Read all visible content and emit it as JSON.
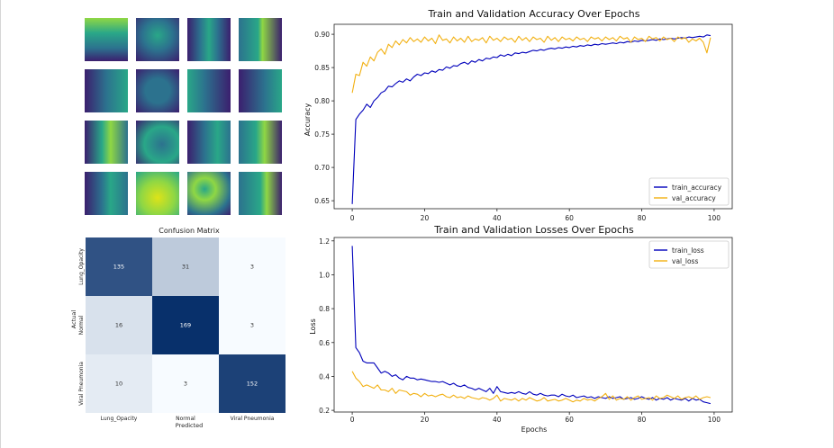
{
  "feature_maps": {
    "columns": 4,
    "rows": 4,
    "palette": {
      "dark": "#3b1f6e",
      "mid": "#2c728e",
      "teal": "#29a788",
      "light": "#8fd744",
      "bright": "#dde318"
    }
  },
  "chart_data": [
    {
      "type": "heatmap",
      "title": "Confusion Matrix",
      "xlabel": "Predicted",
      "ylabel": "Actual",
      "x_categories": [
        "Lung_Opacity",
        "Normal",
        "Viral Pneumonia"
      ],
      "y_categories": [
        "Lung_Opacity",
        "Normal",
        "Viral Pneumonia"
      ],
      "values": [
        [
          135,
          31,
          3
        ],
        [
          16,
          169,
          3
        ],
        [
          10,
          3,
          152
        ]
      ],
      "colormap": "Blues",
      "color_low": "#f7fbff",
      "color_high": "#08306b"
    },
    {
      "type": "line",
      "title": "Train and Validation Accuracy Over Epochs",
      "xlabel": "",
      "ylabel": "Accuracy",
      "x": [
        0,
        1,
        2,
        3,
        4,
        5,
        6,
        7,
        8,
        9,
        10,
        11,
        12,
        13,
        14,
        15,
        16,
        17,
        18,
        19,
        20,
        21,
        22,
        23,
        24,
        25,
        26,
        27,
        28,
        29,
        30,
        31,
        32,
        33,
        34,
        35,
        36,
        37,
        38,
        39,
        40,
        41,
        42,
        43,
        44,
        45,
        46,
        47,
        48,
        49,
        50,
        51,
        52,
        53,
        54,
        55,
        56,
        57,
        58,
        59,
        60,
        61,
        62,
        63,
        64,
        65,
        66,
        67,
        68,
        69,
        70,
        71,
        72,
        73,
        74,
        75,
        76,
        77,
        78,
        79,
        80,
        81,
        82,
        83,
        84,
        85,
        86,
        87,
        88,
        89,
        90,
        91,
        92,
        93,
        94,
        95,
        96,
        97,
        98,
        99
      ],
      "xlim": [
        -5,
        105
      ],
      "ylim": [
        0.638,
        0.915
      ],
      "yticks": [
        0.65,
        0.7,
        0.75,
        0.8,
        0.85,
        0.9
      ],
      "ytick_labels": [
        "0.65",
        "0.70",
        "0.75",
        "0.80",
        "0.85",
        "0.90"
      ],
      "xticks": [
        0,
        20,
        40,
        60,
        80,
        100
      ],
      "xtick_labels": [
        "0",
        "20",
        "40",
        "60",
        "80",
        "100"
      ],
      "legend_position": "lower-right",
      "series": [
        {
          "name": "train_accuracy",
          "color": "#0000bb",
          "values": [
            0.645,
            0.772,
            0.78,
            0.786,
            0.795,
            0.79,
            0.8,
            0.805,
            0.812,
            0.815,
            0.822,
            0.821,
            0.826,
            0.83,
            0.828,
            0.833,
            0.83,
            0.836,
            0.84,
            0.838,
            0.842,
            0.841,
            0.845,
            0.843,
            0.847,
            0.846,
            0.851,
            0.849,
            0.853,
            0.852,
            0.856,
            0.858,
            0.855,
            0.86,
            0.858,
            0.862,
            0.86,
            0.864,
            0.863,
            0.866,
            0.865,
            0.869,
            0.867,
            0.87,
            0.868,
            0.872,
            0.871,
            0.873,
            0.872,
            0.874,
            0.876,
            0.875,
            0.877,
            0.876,
            0.878,
            0.879,
            0.878,
            0.88,
            0.879,
            0.881,
            0.88,
            0.882,
            0.881,
            0.883,
            0.882,
            0.884,
            0.883,
            0.885,
            0.884,
            0.886,
            0.885,
            0.886,
            0.887,
            0.886,
            0.888,
            0.887,
            0.889,
            0.888,
            0.89,
            0.889,
            0.891,
            0.89,
            0.891,
            0.892,
            0.891,
            0.893,
            0.892,
            0.893,
            0.894,
            0.893,
            0.894,
            0.895,
            0.894,
            0.896,
            0.895,
            0.896,
            0.897,
            0.896,
            0.899,
            0.898
          ]
        },
        {
          "name": "val_accuracy",
          "color": "#f2b011",
          "values": [
            0.812,
            0.84,
            0.838,
            0.858,
            0.852,
            0.866,
            0.86,
            0.873,
            0.878,
            0.87,
            0.885,
            0.88,
            0.89,
            0.884,
            0.892,
            0.887,
            0.895,
            0.889,
            0.893,
            0.888,
            0.896,
            0.89,
            0.894,
            0.886,
            0.899,
            0.891,
            0.893,
            0.887,
            0.896,
            0.89,
            0.894,
            0.888,
            0.897,
            0.889,
            0.893,
            0.891,
            0.895,
            0.887,
            0.897,
            0.891,
            0.894,
            0.889,
            0.896,
            0.892,
            0.894,
            0.888,
            0.897,
            0.891,
            0.895,
            0.889,
            0.896,
            0.892,
            0.894,
            0.888,
            0.897,
            0.891,
            0.895,
            0.889,
            0.896,
            0.892,
            0.894,
            0.89,
            0.896,
            0.892,
            0.894,
            0.889,
            0.896,
            0.893,
            0.895,
            0.89,
            0.896,
            0.892,
            0.895,
            0.89,
            0.897,
            0.893,
            0.895,
            0.888,
            0.896,
            0.892,
            0.894,
            0.889,
            0.897,
            0.893,
            0.895,
            0.89,
            0.896,
            0.892,
            0.894,
            0.889,
            0.896,
            0.893,
            0.895,
            0.888,
            0.893,
            0.89,
            0.894,
            0.888,
            0.872,
            0.895
          ]
        }
      ]
    },
    {
      "type": "line",
      "title": "Train and Validation Losses Over Epochs",
      "xlabel": "Epochs",
      "ylabel": "Loss",
      "x": [
        0,
        1,
        2,
        3,
        4,
        5,
        6,
        7,
        8,
        9,
        10,
        11,
        12,
        13,
        14,
        15,
        16,
        17,
        18,
        19,
        20,
        21,
        22,
        23,
        24,
        25,
        26,
        27,
        28,
        29,
        30,
        31,
        32,
        33,
        34,
        35,
        36,
        37,
        38,
        39,
        40,
        41,
        42,
        43,
        44,
        45,
        46,
        47,
        48,
        49,
        50,
        51,
        52,
        53,
        54,
        55,
        56,
        57,
        58,
        59,
        60,
        61,
        62,
        63,
        64,
        65,
        66,
        67,
        68,
        69,
        70,
        71,
        72,
        73,
        74,
        75,
        76,
        77,
        78,
        79,
        80,
        81,
        82,
        83,
        84,
        85,
        86,
        87,
        88,
        89,
        90,
        91,
        92,
        93,
        94,
        95,
        96,
        97,
        98,
        99
      ],
      "xlim": [
        -5,
        105
      ],
      "ylim": [
        0.19,
        1.22
      ],
      "yticks": [
        0.2,
        0.4,
        0.6,
        0.8,
        1.0,
        1.2
      ],
      "ytick_labels": [
        "0.2",
        "0.4",
        "0.6",
        "0.8",
        "1.0",
        "1.2"
      ],
      "xticks": [
        0,
        20,
        40,
        60,
        80,
        100
      ],
      "xtick_labels": [
        "0",
        "20",
        "40",
        "60",
        "80",
        "100"
      ],
      "legend_position": "top-right",
      "series": [
        {
          "name": "train_loss",
          "color": "#0000bb",
          "values": [
            1.17,
            0.57,
            0.54,
            0.49,
            0.48,
            0.48,
            0.48,
            0.45,
            0.42,
            0.43,
            0.42,
            0.4,
            0.41,
            0.39,
            0.38,
            0.4,
            0.39,
            0.39,
            0.38,
            0.385,
            0.38,
            0.375,
            0.37,
            0.37,
            0.365,
            0.37,
            0.36,
            0.35,
            0.36,
            0.345,
            0.34,
            0.35,
            0.335,
            0.33,
            0.32,
            0.33,
            0.32,
            0.31,
            0.33,
            0.3,
            0.34,
            0.31,
            0.305,
            0.3,
            0.305,
            0.3,
            0.31,
            0.3,
            0.295,
            0.31,
            0.295,
            0.29,
            0.3,
            0.29,
            0.285,
            0.29,
            0.29,
            0.28,
            0.295,
            0.285,
            0.28,
            0.29,
            0.275,
            0.28,
            0.285,
            0.275,
            0.28,
            0.27,
            0.28,
            0.275,
            0.27,
            0.28,
            0.27,
            0.275,
            0.28,
            0.265,
            0.27,
            0.275,
            0.265,
            0.27,
            0.28,
            0.27,
            0.265,
            0.275,
            0.26,
            0.27,
            0.265,
            0.275,
            0.26,
            0.27,
            0.265,
            0.26,
            0.27,
            0.255,
            0.27,
            0.26,
            0.265,
            0.25,
            0.245,
            0.24
          ]
        },
        {
          "name": "val_loss",
          "color": "#f2b011",
          "values": [
            0.43,
            0.39,
            0.37,
            0.34,
            0.35,
            0.34,
            0.33,
            0.35,
            0.32,
            0.32,
            0.31,
            0.33,
            0.3,
            0.32,
            0.315,
            0.31,
            0.29,
            0.3,
            0.295,
            0.28,
            0.3,
            0.285,
            0.29,
            0.28,
            0.29,
            0.295,
            0.28,
            0.275,
            0.29,
            0.275,
            0.28,
            0.27,
            0.285,
            0.275,
            0.27,
            0.265,
            0.275,
            0.27,
            0.26,
            0.27,
            0.29,
            0.255,
            0.27,
            0.265,
            0.26,
            0.27,
            0.255,
            0.27,
            0.26,
            0.275,
            0.265,
            0.255,
            0.26,
            0.275,
            0.255,
            0.26,
            0.265,
            0.255,
            0.26,
            0.27,
            0.26,
            0.25,
            0.26,
            0.255,
            0.27,
            0.26,
            0.265,
            0.255,
            0.27,
            0.28,
            0.3,
            0.265,
            0.285,
            0.26,
            0.27,
            0.265,
            0.28,
            0.26,
            0.275,
            0.285,
            0.265,
            0.27,
            0.275,
            0.26,
            0.285,
            0.27,
            0.275,
            0.29,
            0.28,
            0.27,
            0.285,
            0.265,
            0.275,
            0.28,
            0.27,
            0.285,
            0.265,
            0.275,
            0.28,
            0.275
          ]
        }
      ]
    }
  ]
}
